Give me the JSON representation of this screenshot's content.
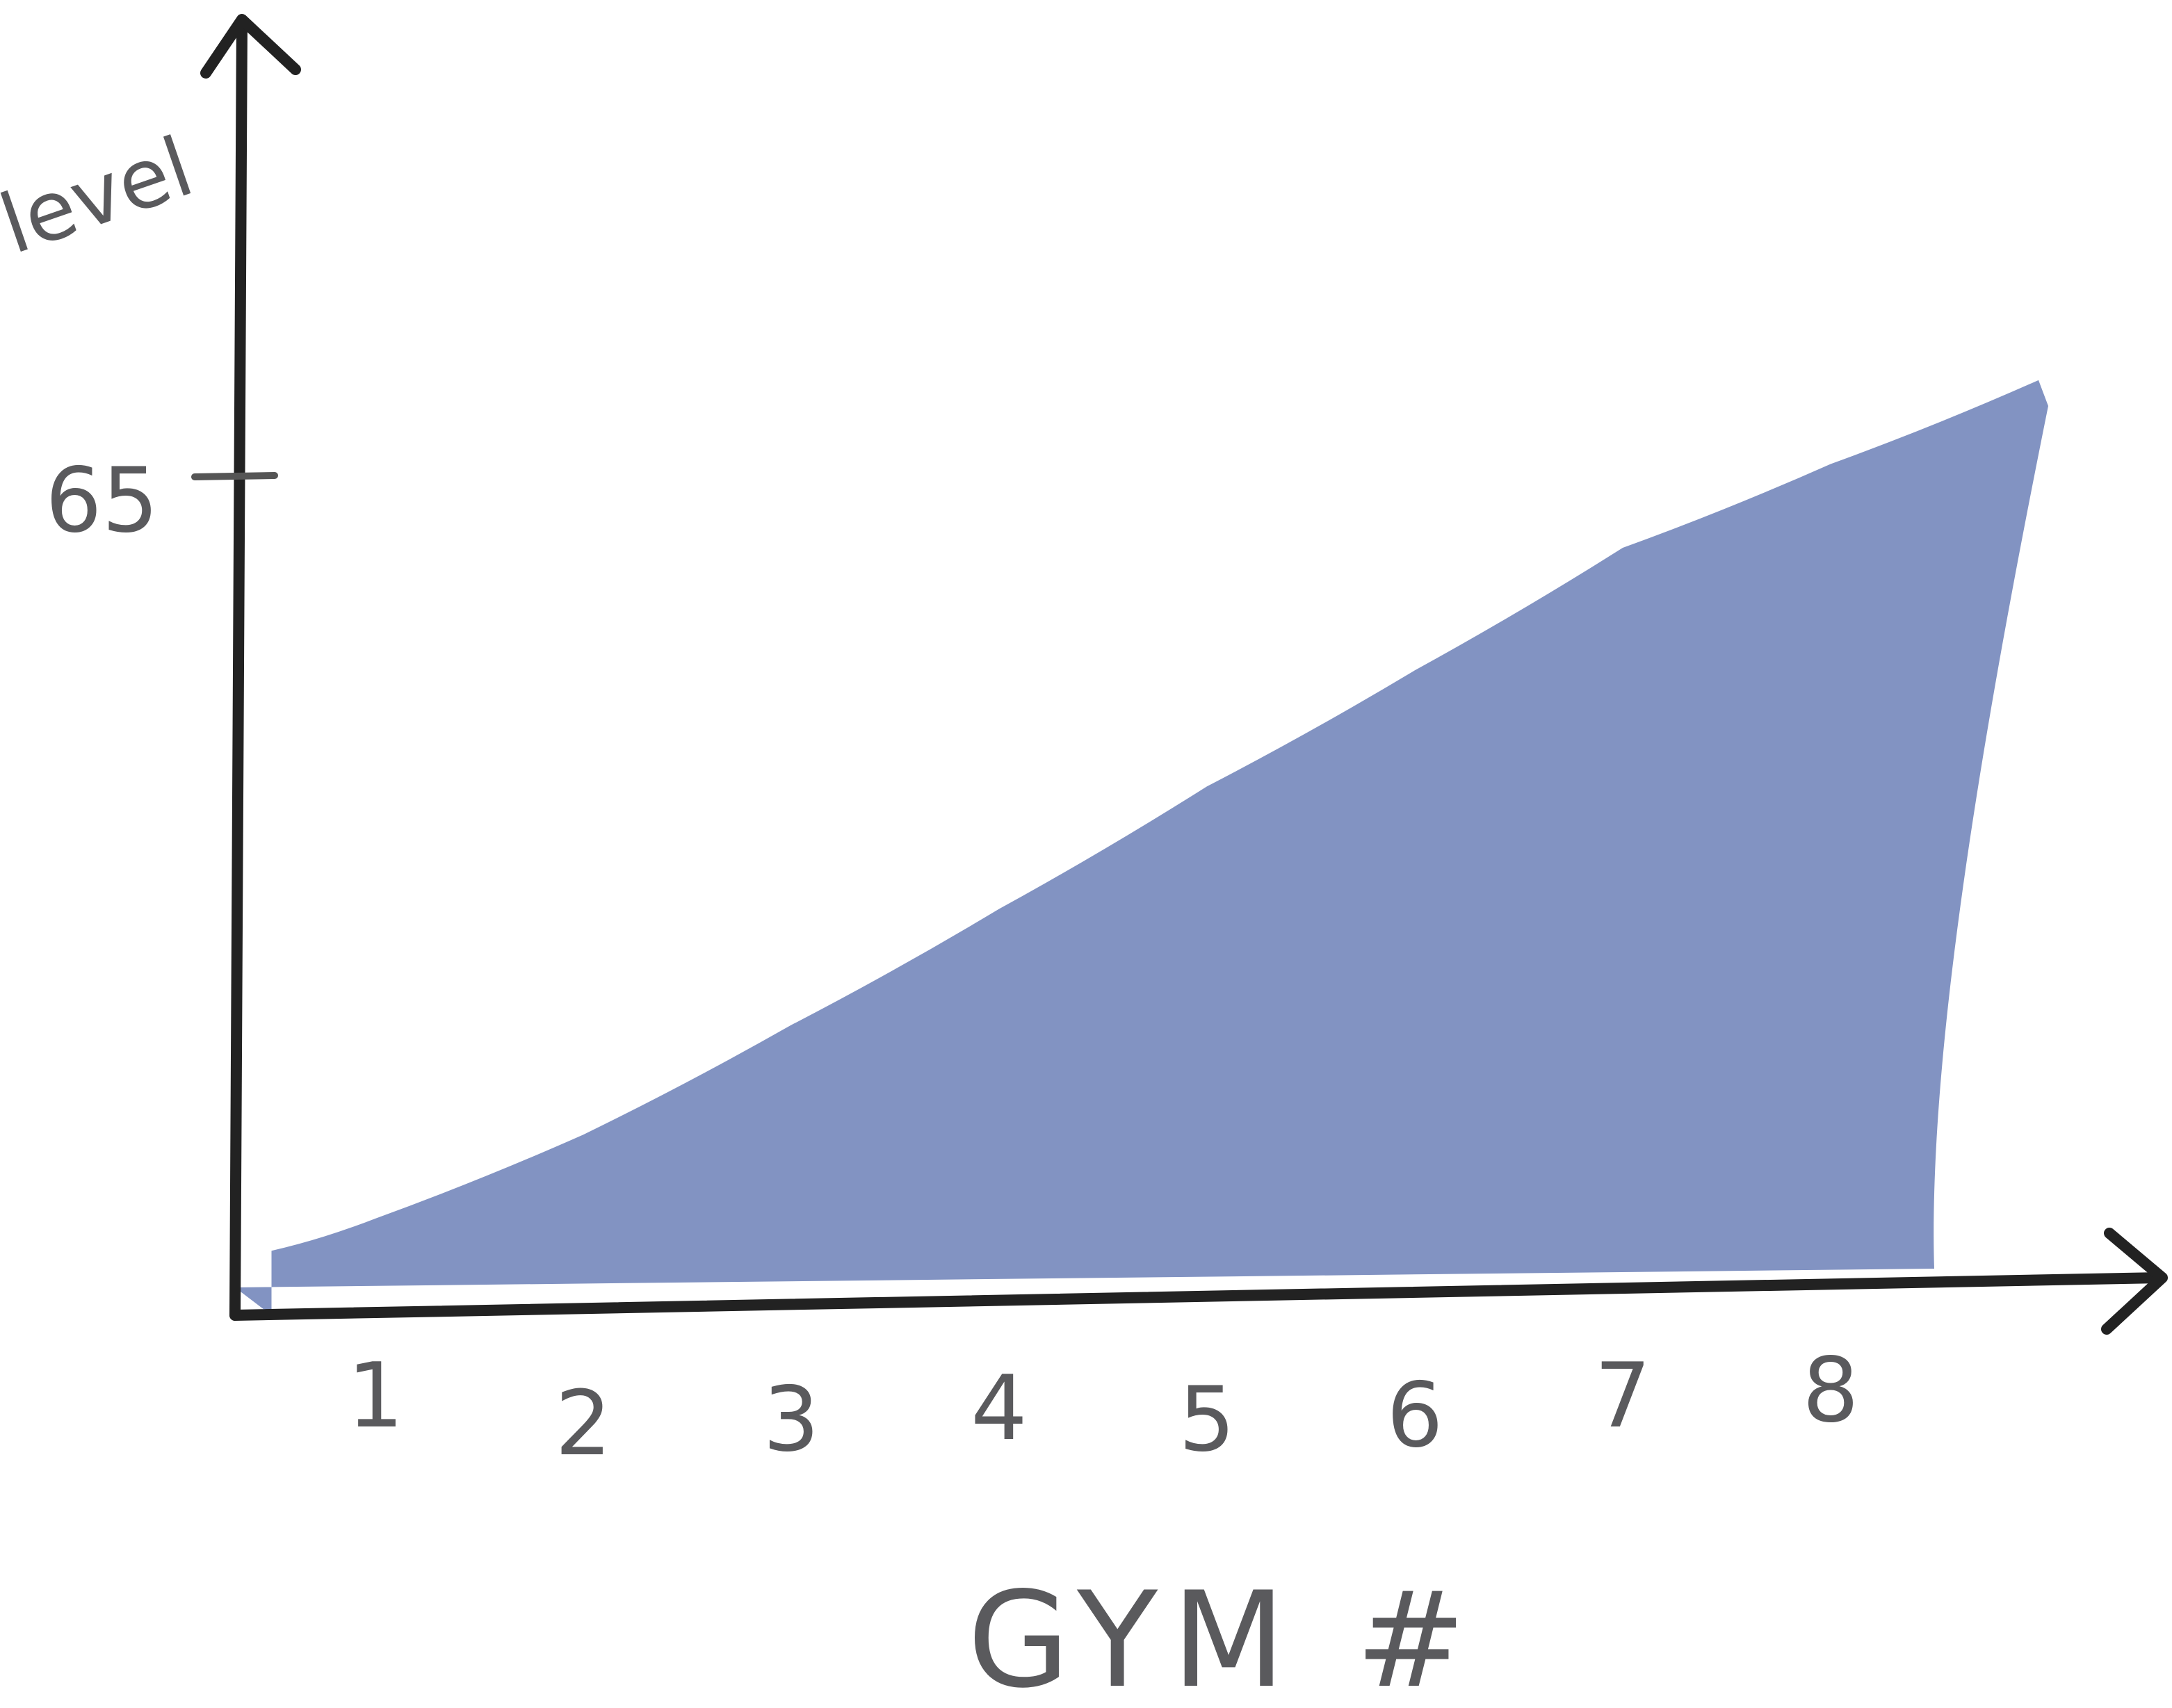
{
  "chart_data": {
    "type": "area",
    "title": "",
    "xlabel": "GYM #",
    "ylabel": "level",
    "x_ticks": [
      "1",
      "2",
      "3",
      "4",
      "5",
      "6",
      "7",
      "8"
    ],
    "y_ticks": [
      "65"
    ],
    "ylim": [
      0,
      65
    ],
    "x": [
      0.5,
      1,
      2,
      3,
      4,
      5,
      6,
      7,
      8,
      9
    ],
    "values": [
      5,
      7.5,
      14,
      22.5,
      31.5,
      41,
      50,
      59.5,
      66,
      72.5
    ],
    "grid": false,
    "legend": "none",
    "colors": {
      "area": "#8293c2",
      "axis": "#222222",
      "text": "#5a5a5d"
    }
  }
}
